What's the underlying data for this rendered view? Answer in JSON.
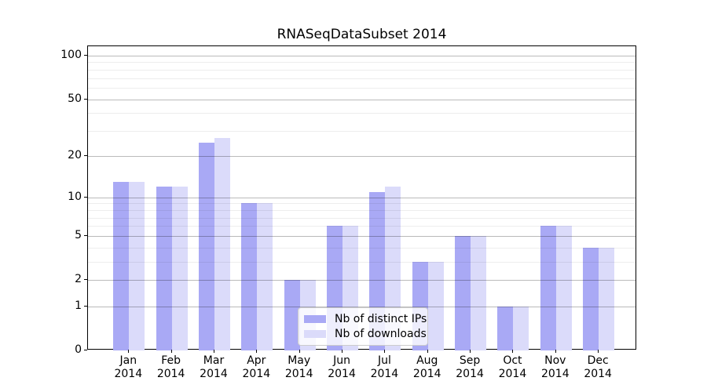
{
  "chart_data": {
    "type": "bar",
    "title": "RNASeqDataSubset 2014",
    "categories": [
      "Jan 2014",
      "Feb 2014",
      "Mar 2014",
      "Apr 2014",
      "May 2014",
      "Jun 2014",
      "Jul 2014",
      "Aug 2014",
      "Sep 2014",
      "Oct 2014",
      "Nov 2014",
      "Dec 2014"
    ],
    "series": [
      {
        "name": "Nb of distinct IPs",
        "color": "#a9a9f5",
        "values": [
          13,
          12,
          25,
          9,
          2,
          6,
          11,
          3,
          5,
          1,
          6,
          4
        ]
      },
      {
        "name": "Nb of downloads",
        "color": "#dbdbfa",
        "values": [
          13,
          12,
          27,
          9,
          2,
          6,
          12,
          3,
          5,
          1,
          6,
          4
        ]
      }
    ],
    "xlabel": "",
    "ylabel": "",
    "yscale": "log1p",
    "ylim": [
      0,
      116
    ],
    "yticks": [
      0,
      1,
      2,
      5,
      10,
      20,
      50,
      100
    ],
    "yticks_minor": [
      3,
      4,
      6,
      7,
      8,
      9,
      30,
      40,
      60,
      70,
      80,
      90
    ],
    "grid": "on",
    "legend_position": "lower center"
  }
}
